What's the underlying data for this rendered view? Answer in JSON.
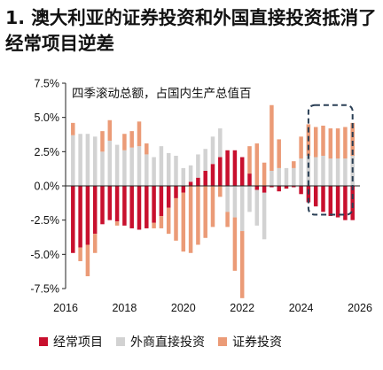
{
  "title": "1. 澳大利亚的证券投资和外国直接投资抵消了经常项目逆差",
  "chart_data": {
    "type": "bar",
    "stacked": true,
    "annotation": "四季滚动总额，占国内生产总值百",
    "y_ticks": [
      "7.5%",
      "5.0%",
      "2.5%",
      "0.0%",
      "-2.5%",
      "-5.0%",
      "-7.5%"
    ],
    "x_ticks": [
      "2016",
      "2018",
      "2020",
      "2022",
      "2024",
      "2026"
    ],
    "ylim": [
      -7.5,
      7.5
    ],
    "xlim": [
      2016.0,
      2026.0
    ],
    "grid": false,
    "legend_position": "bottom",
    "highlight_box": {
      "x_range": [
        2024.25,
        2025.75
      ],
      "y_range": [
        -2.1,
        5.9
      ],
      "style": "dashed",
      "color": "#2a3f55"
    },
    "x": [
      2016.25,
      2016.5,
      2016.75,
      2017.0,
      2017.25,
      2017.5,
      2017.75,
      2018.0,
      2018.25,
      2018.5,
      2018.75,
      2019.0,
      2019.25,
      2019.5,
      2019.75,
      2020.0,
      2020.25,
      2020.5,
      2020.75,
      2021.0,
      2021.25,
      2021.5,
      2021.75,
      2022.0,
      2022.25,
      2022.5,
      2022.75,
      2023.0,
      2023.25,
      2023.5,
      2023.75,
      2024.0,
      2024.25,
      2024.5,
      2024.75,
      2025.0,
      2025.25,
      2025.5,
      2025.75
    ],
    "series": [
      {
        "name": "经常项目",
        "color": "#c8102e",
        "values": [
          -4.9,
          -4.5,
          -4.3,
          -3.5,
          -2.8,
          -2.5,
          -2.6,
          -2.9,
          -3.1,
          -3.2,
          -3.1,
          -2.7,
          -2.2,
          -1.6,
          -0.9,
          -0.5,
          0.3,
          0.6,
          1.1,
          1.6,
          2.1,
          2.6,
          2.6,
          2.1,
          0.9,
          -0.3,
          -0.5,
          -0.1,
          -0.4,
          -0.2,
          -0.1,
          -0.6,
          -1.2,
          -1.5,
          -1.9,
          -2.2,
          -2.3,
          -2.5,
          -2.5
        ]
      },
      {
        "name": "外商直接投资",
        "color": "#d2d2d2",
        "values": [
          3.7,
          3.8,
          3.8,
          3.6,
          2.5,
          3.3,
          3.0,
          2.6,
          2.8,
          2.9,
          2.3,
          2.1,
          2.9,
          2.4,
          2.2,
          1.3,
          1.2,
          1.7,
          1.6,
          2.0,
          2.1,
          -1.9,
          -2.3,
          -3.3,
          -1.9,
          -2.6,
          -3.4,
          1.1,
          1.3,
          1.3,
          1.3,
          2.0,
          2.2,
          2.1,
          2.2,
          2.0,
          2.0,
          2.0,
          2.2
        ]
      },
      {
        "name": "证券投资",
        "color": "#eb9b77",
        "values": [
          0.9,
          -1.0,
          -2.3,
          -1.4,
          1.5,
          1.5,
          -0.3,
          1.2,
          1.2,
          1.8,
          0.8,
          -0.4,
          -0.9,
          -1.9,
          -3.1,
          -4.3,
          -4.9,
          -4.3,
          -3.8,
          -3.0,
          -0.8,
          -1.1,
          -3.9,
          -4.9,
          2.0,
          3.1,
          1.7,
          4.8,
          2.1,
          0.0,
          0.5,
          1.6,
          2.3,
          2.2,
          2.2,
          2.2,
          2.2,
          2.3,
          2.4
        ]
      }
    ]
  }
}
